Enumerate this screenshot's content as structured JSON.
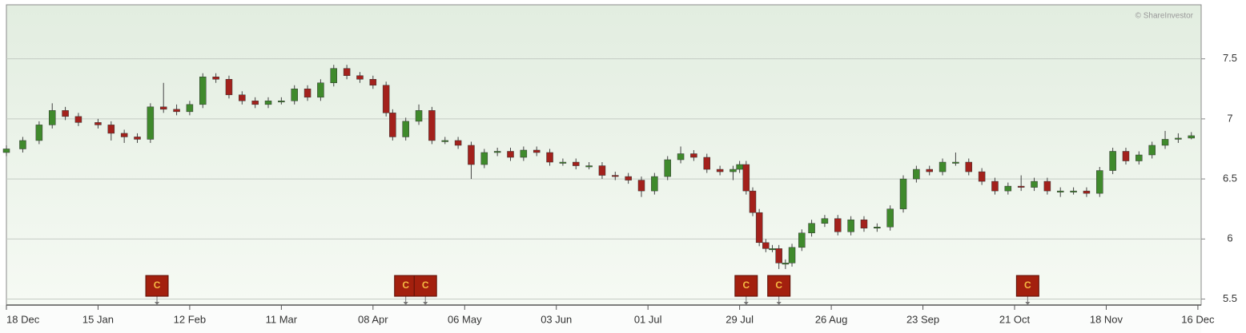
{
  "chart_data": {
    "type": "candlestick",
    "watermark": "© ShareInvestor",
    "up_color": "#3f8a2c",
    "down_color": "#a3211c",
    "marker_color": "#a3200e",
    "marker_text_color": "#f5b942",
    "grid": true,
    "xlim": [
      0,
      365
    ],
    "xticks": [
      {
        "value": 0,
        "label": "18 Dec"
      },
      {
        "value": 28,
        "label": "15 Jan"
      },
      {
        "value": 56,
        "label": "12 Feb"
      },
      {
        "value": 84,
        "label": "11 Mar"
      },
      {
        "value": 112,
        "label": "08 Apr"
      },
      {
        "value": 140,
        "label": "06 May"
      },
      {
        "value": 168,
        "label": "03 Jun"
      },
      {
        "value": 196,
        "label": "01 Jul"
      },
      {
        "value": 224,
        "label": "29 Jul"
      },
      {
        "value": 252,
        "label": "26 Aug"
      },
      {
        "value": 280,
        "label": "23 Sep"
      },
      {
        "value": 308,
        "label": "21 Oct"
      },
      {
        "value": 336,
        "label": "18 Nov"
      },
      {
        "value": 364,
        "label": "16 Dec"
      }
    ],
    "ylim": [
      5.45,
      7.95
    ],
    "yticks": [
      5.5,
      6,
      6.5,
      7,
      7.5
    ],
    "x": [
      0,
      5,
      10,
      14,
      18,
      22,
      28,
      32,
      36,
      40,
      44,
      48,
      52,
      56,
      60,
      64,
      68,
      72,
      76,
      80,
      84,
      88,
      92,
      96,
      100,
      104,
      108,
      112,
      116,
      118,
      122,
      126,
      130,
      134,
      138,
      142,
      146,
      150,
      154,
      158,
      162,
      166,
      170,
      174,
      178,
      182,
      186,
      190,
      194,
      198,
      202,
      206,
      210,
      214,
      218,
      222,
      224,
      226,
      228,
      230,
      232,
      234,
      236,
      238,
      240,
      243,
      246,
      250,
      254,
      258,
      262,
      266,
      270,
      274,
      278,
      282,
      286,
      290,
      294,
      298,
      302,
      306,
      310,
      314,
      318,
      322,
      326,
      330,
      334,
      338,
      342,
      346,
      350,
      354,
      358,
      362
    ],
    "open": [
      6.72,
      6.75,
      6.82,
      6.95,
      7.07,
      7.02,
      6.97,
      6.95,
      6.88,
      6.85,
      6.83,
      7.1,
      7.08,
      7.06,
      7.12,
      7.35,
      7.33,
      7.2,
      7.15,
      7.12,
      7.15,
      7.15,
      7.25,
      7.18,
      7.3,
      7.42,
      7.36,
      7.33,
      7.28,
      7.05,
      6.85,
      6.98,
      7.07,
      6.82,
      6.82,
      6.78,
      6.62,
      6.72,
      6.73,
      6.68,
      6.74,
      6.72,
      6.64,
      6.64,
      6.61,
      6.61,
      6.53,
      6.52,
      6.49,
      6.4,
      6.52,
      6.66,
      6.71,
      6.68,
      6.58,
      6.56,
      6.58,
      6.62,
      6.4,
      6.22,
      5.97,
      5.92,
      5.92,
      5.8,
      5.8,
      5.93,
      6.05,
      6.13,
      6.17,
      6.06,
      6.16,
      6.09,
      6.1,
      6.25,
      6.5,
      6.58,
      6.56,
      6.64,
      6.64,
      6.56,
      6.48,
      6.4,
      6.44,
      6.43,
      6.48,
      6.4,
      6.4,
      6.4,
      6.38,
      6.57,
      6.73,
      6.65,
      6.7,
      6.78,
      6.83,
      6.84
    ],
    "high": [
      6.78,
      6.85,
      6.98,
      7.13,
      7.1,
      7.05,
      7.0,
      6.98,
      6.91,
      6.88,
      7.13,
      7.3,
      7.12,
      7.15,
      7.38,
      7.38,
      7.36,
      7.23,
      7.18,
      7.18,
      7.18,
      7.28,
      7.28,
      7.33,
      7.45,
      7.45,
      7.39,
      7.36,
      7.31,
      7.08,
      7.01,
      7.12,
      7.1,
      6.85,
      6.85,
      6.81,
      6.75,
      6.76,
      6.76,
      6.77,
      6.77,
      6.75,
      6.67,
      6.67,
      6.64,
      6.64,
      6.56,
      6.55,
      6.52,
      6.55,
      6.69,
      6.77,
      6.74,
      6.71,
      6.61,
      6.61,
      6.65,
      6.65,
      6.43,
      6.25,
      6.0,
      5.95,
      5.95,
      5.83,
      5.96,
      6.08,
      6.16,
      6.2,
      6.2,
      6.19,
      6.19,
      6.13,
      6.28,
      6.53,
      6.61,
      6.61,
      6.67,
      6.72,
      6.67,
      6.59,
      6.51,
      6.47,
      6.53,
      6.51,
      6.51,
      6.43,
      6.43,
      6.43,
      6.6,
      6.76,
      6.76,
      6.73,
      6.81,
      6.9,
      6.88,
      6.89
    ],
    "low": [
      6.69,
      6.72,
      6.79,
      6.92,
      6.99,
      6.94,
      6.92,
      6.82,
      6.8,
      6.8,
      6.8,
      7.05,
      7.03,
      7.03,
      7.09,
      7.3,
      7.17,
      7.12,
      7.09,
      7.09,
      7.12,
      7.12,
      7.15,
      7.15,
      7.27,
      7.33,
      7.3,
      7.25,
      7.02,
      6.82,
      6.82,
      6.95,
      6.79,
      6.79,
      6.75,
      6.5,
      6.59,
      6.69,
      6.65,
      6.65,
      6.69,
      6.61,
      6.61,
      6.58,
      6.58,
      6.5,
      6.49,
      6.46,
      6.35,
      6.37,
      6.49,
      6.63,
      6.65,
      6.55,
      6.53,
      6.49,
      6.55,
      6.37,
      6.19,
      5.94,
      5.89,
      5.89,
      5.75,
      5.75,
      5.77,
      5.9,
      6.02,
      6.1,
      6.03,
      6.03,
      6.06,
      6.06,
      6.07,
      6.22,
      6.47,
      6.53,
      6.53,
      6.61,
      6.53,
      6.45,
      6.37,
      6.37,
      6.4,
      6.4,
      6.37,
      6.35,
      6.37,
      6.35,
      6.35,
      6.54,
      6.62,
      6.62,
      6.67,
      6.75,
      6.8,
      6.83
    ],
    "close": [
      6.75,
      6.82,
      6.95,
      7.07,
      7.02,
      6.97,
      6.95,
      6.88,
      6.85,
      6.83,
      7.1,
      7.08,
      7.06,
      7.12,
      7.35,
      7.33,
      7.2,
      7.15,
      7.12,
      7.15,
      7.15,
      7.25,
      7.18,
      7.3,
      7.42,
      7.36,
      7.33,
      7.28,
      7.05,
      6.85,
      6.98,
      7.07,
      6.82,
      6.82,
      6.78,
      6.62,
      6.72,
      6.73,
      6.68,
      6.74,
      6.72,
      6.64,
      6.64,
      6.61,
      6.61,
      6.53,
      6.52,
      6.49,
      6.4,
      6.52,
      6.66,
      6.71,
      6.68,
      6.58,
      6.56,
      6.58,
      6.62,
      6.4,
      6.22,
      5.97,
      5.92,
      5.92,
      5.8,
      5.8,
      5.93,
      6.05,
      6.13,
      6.17,
      6.06,
      6.16,
      6.09,
      6.1,
      6.25,
      6.5,
      6.58,
      6.56,
      6.64,
      6.64,
      6.56,
      6.48,
      6.4,
      6.44,
      6.43,
      6.48,
      6.4,
      6.4,
      6.4,
      6.38,
      6.57,
      6.73,
      6.65,
      6.7,
      6.78,
      6.83,
      6.84,
      6.86
    ],
    "events": {
      "x": [
        46,
        122,
        128,
        226,
        236,
        312
      ],
      "labels": [
        "C",
        "C",
        "C",
        "C",
        "C",
        "C"
      ]
    }
  }
}
